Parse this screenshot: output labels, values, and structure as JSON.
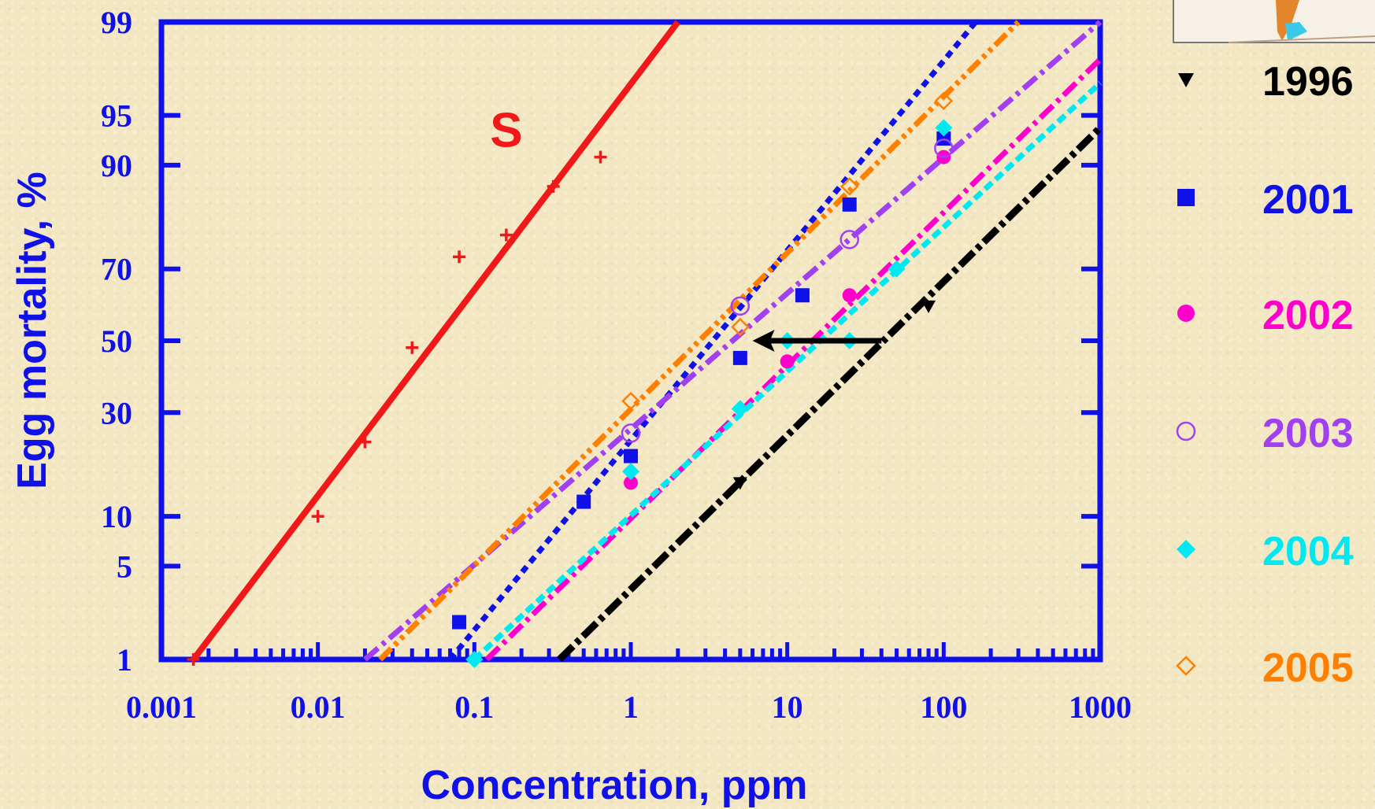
{
  "colors": {
    "axis": "#1010e8",
    "S": "#f01818",
    "1996": "#000000",
    "2001": "#1010e8",
    "2002": "#ff00cc",
    "2003": "#a040f0",
    "2004": "#00e8f0",
    "2005": "#ff7f00"
  },
  "chart_data": {
    "type": "line",
    "xlabel": "Concentration, ppm",
    "ylabel": "Egg mortality, %",
    "x_scale": "log",
    "y_scale": "probit",
    "xlim": [
      0.001,
      1000
    ],
    "ylim": [
      1,
      99
    ],
    "x_ticks": [
      {
        "value": 0.001,
        "label": "0.001"
      },
      {
        "value": 0.01,
        "label": "0.01"
      },
      {
        "value": 0.1,
        "label": "0.1"
      },
      {
        "value": 1,
        "label": "1"
      },
      {
        "value": 10,
        "label": "10"
      },
      {
        "value": 100,
        "label": "100"
      },
      {
        "value": 1000,
        "label": "1000"
      }
    ],
    "y_ticks": [
      {
        "value": 1,
        "label": "1"
      },
      {
        "value": 5,
        "label": "5"
      },
      {
        "value": 10,
        "label": "10"
      },
      {
        "value": 30,
        "label": "30"
      },
      {
        "value": 50,
        "label": "50"
      },
      {
        "value": 70,
        "label": "70"
      },
      {
        "value": 90,
        "label": "90"
      },
      {
        "value": 95,
        "label": "95"
      },
      {
        "value": 99,
        "label": "99"
      }
    ],
    "grid": false,
    "legend_position": "right",
    "annotation": {
      "text": "S",
      "x": 0.16,
      "y": 94
    },
    "arrow": {
      "from": {
        "x": 40,
        "y": 50
      },
      "to": {
        "x": 6,
        "y": 50
      }
    },
    "series": [
      {
        "name": "S",
        "line": [
          [
            0.0016,
            1
          ],
          [
            2.0,
            99
          ]
        ],
        "points": [
          [
            0.0016,
            1
          ],
          [
            0.01,
            10
          ],
          [
            0.02,
            23
          ],
          [
            0.04,
            48
          ],
          [
            0.08,
            73
          ],
          [
            0.16,
            78
          ],
          [
            0.32,
            87
          ],
          [
            0.64,
            91
          ]
        ]
      },
      {
        "name": "1996",
        "line": [
          [
            0.35,
            1
          ],
          [
            1000,
            94
          ]
        ],
        "points": [
          [
            5,
            15
          ],
          [
            80,
            60
          ]
        ]
      },
      {
        "name": "2001",
        "line": [
          [
            0.07,
            1
          ],
          [
            160,
            99
          ]
        ],
        "points": [
          [
            0.08,
            2
          ],
          [
            0.5,
            12
          ],
          [
            1,
            20
          ],
          [
            5,
            45
          ],
          [
            12.5,
            63
          ],
          [
            25,
            84
          ],
          [
            100,
            93
          ]
        ]
      },
      {
        "name": "2002",
        "line": [
          [
            0.12,
            1
          ],
          [
            1000,
            98
          ]
        ],
        "points": [
          [
            1,
            15
          ],
          [
            10,
            44
          ],
          [
            25,
            63
          ],
          [
            100,
            91
          ]
        ]
      },
      {
        "name": "2003",
        "line": [
          [
            0.02,
            1
          ],
          [
            1000,
            99
          ]
        ],
        "points": [
          [
            1,
            25
          ],
          [
            5,
            60
          ],
          [
            25,
            77
          ],
          [
            100,
            92
          ]
        ]
      },
      {
        "name": "2004",
        "line": [
          [
            0.1,
            1
          ],
          [
            1000,
            97
          ]
        ],
        "points": [
          [
            0.1,
            1
          ],
          [
            1,
            17
          ],
          [
            5,
            31
          ],
          [
            10,
            50
          ],
          [
            25,
            50
          ],
          [
            50,
            70
          ],
          [
            100,
            94
          ]
        ]
      },
      {
        "name": "2005",
        "line": [
          [
            0.025,
            1
          ],
          [
            300,
            99
          ]
        ],
        "points": [
          [
            1,
            33
          ],
          [
            5,
            54
          ],
          [
            25,
            87
          ],
          [
            100,
            96
          ]
        ]
      }
    ]
  }
}
